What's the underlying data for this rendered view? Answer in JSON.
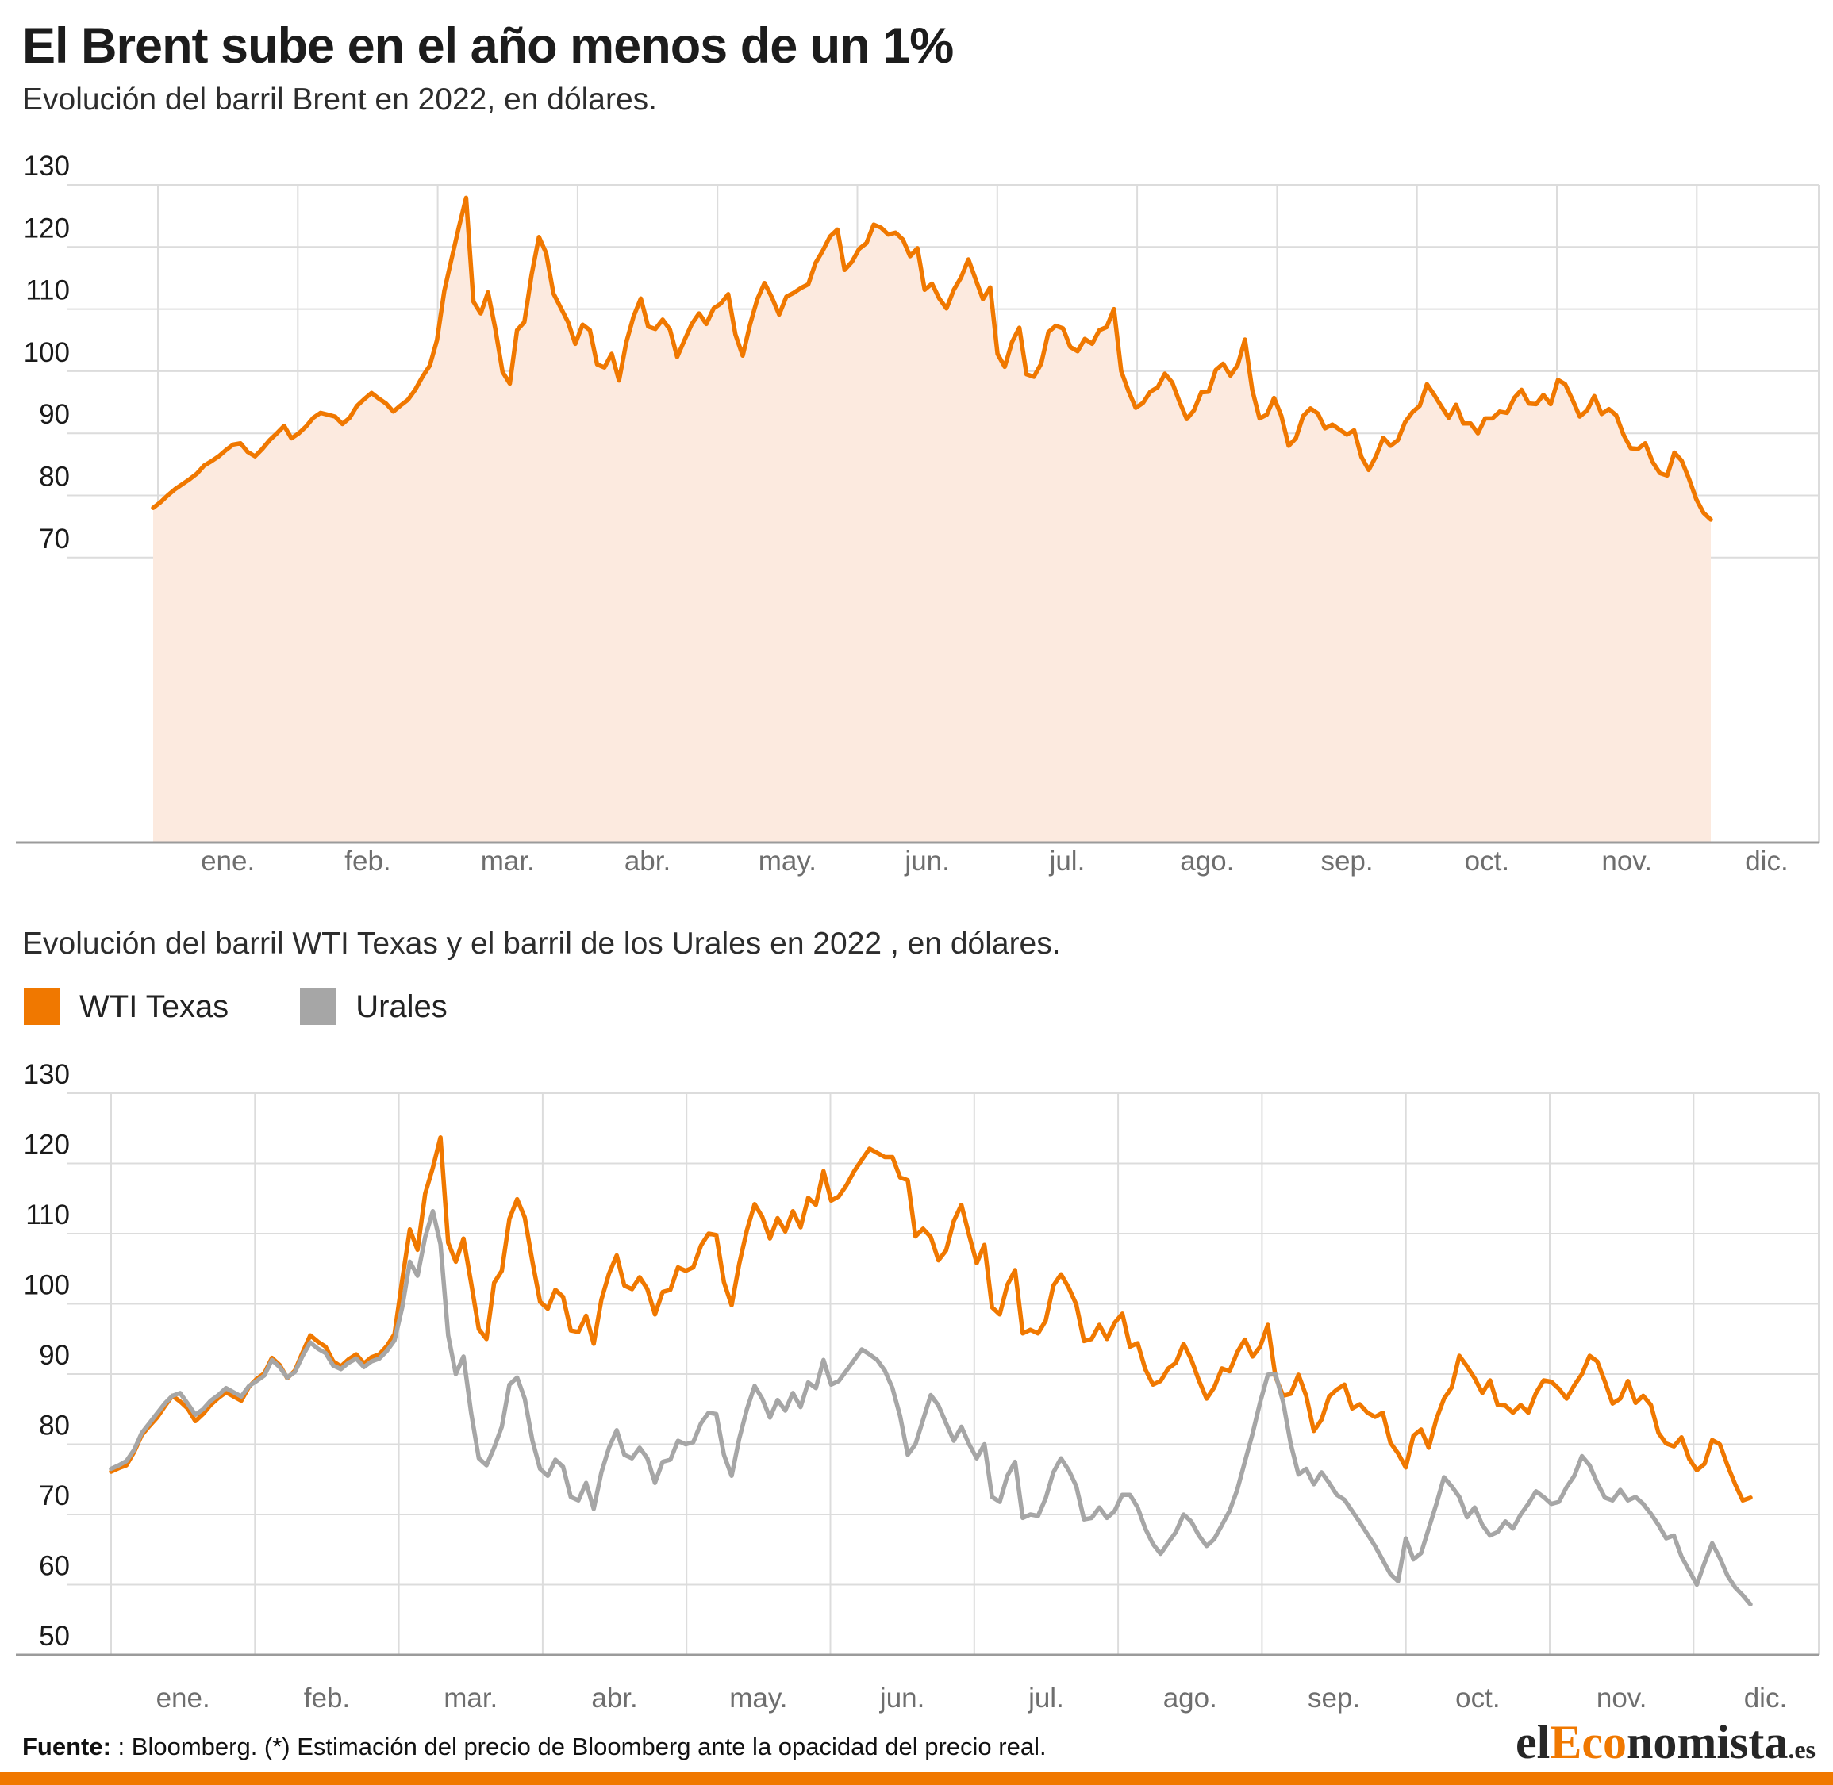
{
  "header": {
    "title": "El Brent sube en el año menos de un 1%",
    "subtitle": "Evolución del barril Brent en 2022, en dólares."
  },
  "section2": {
    "subtitle": "Evolución del barril WTI Texas y el barril de los Urales en 2022 , en dólares.",
    "legend": [
      {
        "label": "WTI Texas",
        "color": "#F07800"
      },
      {
        "label": "Urales",
        "color": "#A6A6A6"
      }
    ]
  },
  "footer": {
    "source_label": "Fuente:",
    "source_text": " : Bloomberg. (*) Estimación del precio de Bloomberg ante la opacidad del precio real.",
    "logo": {
      "part1": "el",
      "part2": "Eco",
      "part3": "nomista",
      "part4": ".es"
    }
  },
  "colors": {
    "accent": "#F07800",
    "area_fill": "#FCEADF",
    "gray_line": "#A6A6A6",
    "grid": "#DCDCDC",
    "axis": "#9B9B9B",
    "tick_text": "#1A1A1A",
    "month_text": "#6E6E6E"
  },
  "chart_data": [
    {
      "type": "area",
      "title": "Evolución del barril Brent en 2022, en dólares.",
      "ylabel": "",
      "xlabel": "",
      "ylim": [
        66,
        130
      ],
      "y_ticks": [
        130,
        120,
        110,
        100,
        90,
        80,
        70
      ],
      "grid": true,
      "x_labels": [
        "ene.",
        "feb.",
        "mar.",
        "abr.",
        "may.",
        "jun.",
        "jul.",
        "ago.",
        "sep.",
        "oct.",
        "nov.",
        "dic."
      ],
      "series": [
        {
          "name": "Brent",
          "color": "#F07800",
          "fill": "#FCEADF",
          "values": [
            78.0,
            78.9,
            80.0,
            81.0,
            81.8,
            82.6,
            83.5,
            84.8,
            85.5,
            86.3,
            87.3,
            88.2,
            88.4,
            87.0,
            86.3,
            87.5,
            88.9,
            90.0,
            91.2,
            89.2,
            90.0,
            91.1,
            92.5,
            93.3,
            93.0,
            92.7,
            91.5,
            92.5,
            94.4,
            95.5,
            96.5,
            95.6,
            94.8,
            93.5,
            94.5,
            95.4,
            97.0,
            99.1,
            100.9,
            105.0,
            112.9,
            118.1,
            123.2,
            127.9,
            111.2,
            109.3,
            112.7,
            106.9,
            99.9,
            98.0,
            106.6,
            107.9,
            115.6,
            121.6,
            119.0,
            112.5,
            110.2,
            107.9,
            104.4,
            107.5,
            106.6,
            101.1,
            100.6,
            102.8,
            98.5,
            104.6,
            108.8,
            111.7,
            107.2,
            106.8,
            108.3,
            106.7,
            102.3,
            105.0,
            107.6,
            109.3,
            107.6,
            110.1,
            110.9,
            112.4,
            105.9,
            102.5,
            107.5,
            111.6,
            114.2,
            111.9,
            109.1,
            112.0,
            112.6,
            113.4,
            114.0,
            117.4,
            119.4,
            121.7,
            122.8,
            116.3,
            117.6,
            119.7,
            120.6,
            123.6,
            123.1,
            122.0,
            122.3,
            121.2,
            118.5,
            119.8,
            113.1,
            114.1,
            111.7,
            110.1,
            113.1,
            115.1,
            118.0,
            114.8,
            111.6,
            113.5,
            102.8,
            100.7,
            104.7,
            107.0,
            99.5,
            99.1,
            101.2,
            106.3,
            107.3,
            106.9,
            103.9,
            103.2,
            105.2,
            104.4,
            106.6,
            107.1,
            110.0,
            100.0,
            96.8,
            94.1,
            94.9,
            96.7,
            97.4,
            99.6,
            98.2,
            95.1,
            92.3,
            93.7,
            96.6,
            96.7,
            100.2,
            101.2,
            99.3,
            101.0,
            105.1,
            97.0,
            92.4,
            93.0,
            95.7,
            92.8,
            88.0,
            89.2,
            92.8,
            94.0,
            93.2,
            90.8,
            91.4,
            90.6,
            89.8,
            90.5,
            86.2,
            84.1,
            86.3,
            89.3,
            88.0,
            88.9,
            91.8,
            93.4,
            94.4,
            97.9,
            96.2,
            94.3,
            92.5,
            94.6,
            91.6,
            91.6,
            90.0,
            92.4,
            92.4,
            93.5,
            93.3,
            95.7,
            97.0,
            94.8,
            94.7,
            96.2,
            94.7,
            98.6,
            97.9,
            95.4,
            92.7,
            93.7,
            96.0,
            93.1,
            93.9,
            92.9,
            89.8,
            87.6,
            87.5,
            88.4,
            85.4,
            83.6,
            83.2,
            86.9,
            85.6,
            82.7,
            79.4,
            77.2,
            76.1
          ]
        }
      ]
    },
    {
      "type": "line",
      "title": "Evolución del barril WTI Texas y el barril de los Urales en 2022 , en dólares.",
      "ylabel": "",
      "xlabel": "",
      "ylim": [
        50,
        130
      ],
      "y_ticks": [
        130,
        120,
        110,
        100,
        90,
        80,
        70,
        60,
        50
      ],
      "grid": true,
      "legend_position": "top-left",
      "x_labels": [
        "ene.",
        "feb.",
        "mar.",
        "abr.",
        "may.",
        "jun.",
        "jul.",
        "ago.",
        "sep.",
        "oct.",
        "nov.",
        "dic."
      ],
      "series": [
        {
          "name": "WTI Texas",
          "color": "#F07800",
          "values": [
            76.1,
            76.6,
            77.0,
            78.9,
            81.3,
            82.6,
            83.8,
            85.4,
            86.9,
            86.1,
            85.1,
            83.3,
            84.3,
            85.6,
            86.6,
            87.4,
            86.8,
            86.2,
            88.2,
            89.3,
            90.1,
            92.3,
            91.3,
            89.4,
            90.5,
            93.1,
            95.5,
            94.6,
            93.9,
            91.8,
            91.1,
            92.1,
            92.8,
            91.5,
            92.4,
            92.8,
            94.0,
            95.7,
            103.4,
            110.6,
            107.7,
            115.7,
            119.4,
            123.7,
            108.7,
            106.0,
            109.3,
            103.0,
            96.4,
            95.0,
            103.0,
            104.7,
            112.1,
            114.9,
            112.3,
            106.0,
            100.3,
            99.3,
            102.0,
            101.0,
            96.2,
            96.0,
            98.3,
            94.3,
            100.6,
            104.3,
            106.9,
            102.6,
            102.1,
            103.8,
            102.1,
            98.5,
            101.7,
            102.0,
            105.2,
            104.7,
            105.2,
            108.3,
            110.0,
            109.8,
            103.1,
            99.8,
            105.7,
            110.5,
            114.2,
            112.4,
            109.3,
            112.2,
            110.3,
            113.2,
            110.9,
            115.1,
            114.1,
            118.9,
            114.7,
            115.3,
            116.9,
            118.9,
            120.5,
            122.1,
            121.5,
            120.9,
            120.9,
            118.0,
            117.6,
            109.6,
            110.7,
            109.5,
            106.2,
            107.6,
            111.8,
            114.1,
            109.8,
            105.8,
            108.4,
            99.5,
            98.5,
            102.7,
            104.8,
            95.8,
            96.3,
            95.8,
            97.6,
            102.6,
            104.2,
            102.3,
            99.9,
            94.7,
            95.0,
            97.0,
            95.0,
            97.3,
            98.6,
            93.9,
            94.4,
            90.7,
            88.5,
            89.0,
            90.8,
            91.6,
            94.3,
            92.1,
            89.1,
            86.5,
            88.1,
            90.8,
            90.4,
            93.1,
            94.9,
            92.5,
            93.9,
            97.0,
            89.6,
            86.9,
            87.2,
            89.9,
            86.9,
            81.9,
            83.5,
            86.8,
            87.8,
            88.5,
            85.1,
            85.7,
            84.5,
            83.9,
            84.5,
            80.2,
            78.7,
            76.7,
            81.2,
            82.1,
            79.5,
            83.6,
            86.5,
            88.1,
            92.6,
            91.1,
            89.4,
            87.3,
            89.1,
            85.6,
            85.5,
            84.5,
            85.6,
            84.5,
            87.3,
            89.1,
            88.9,
            87.9,
            86.5,
            88.4,
            90.0,
            92.6,
            91.8,
            88.9,
            85.8,
            86.5,
            89.0,
            85.9,
            86.9,
            85.6,
            81.6,
            80.1,
            79.7,
            81.0,
            77.9,
            76.3,
            77.2,
            80.6,
            80.0,
            77.0,
            74.3,
            72.0,
            72.4
          ]
        },
        {
          "name": "Urales",
          "color": "#A6A6A6",
          "values": [
            76.5,
            77.0,
            77.6,
            79.2,
            81.6,
            83.0,
            84.4,
            85.8,
            86.9,
            87.3,
            85.8,
            84.2,
            85.0,
            86.2,
            87.0,
            88.0,
            87.4,
            86.8,
            88.3,
            89.0,
            89.8,
            92.0,
            91.0,
            89.5,
            90.3,
            92.6,
            94.5,
            93.6,
            93.0,
            91.2,
            90.7,
            91.6,
            92.2,
            91.0,
            91.8,
            92.2,
            93.3,
            94.8,
            99.5,
            106.0,
            104.0,
            109.5,
            113.2,
            108.5,
            95.5,
            90.0,
            92.5,
            84.5,
            78.0,
            77.0,
            79.5,
            82.5,
            88.5,
            89.5,
            86.5,
            80.5,
            76.5,
            75.5,
            77.8,
            76.8,
            72.5,
            72.0,
            74.5,
            70.8,
            76.0,
            79.5,
            82.0,
            78.5,
            78.0,
            79.5,
            78.0,
            74.5,
            77.5,
            77.8,
            80.5,
            80.0,
            80.3,
            83.0,
            84.5,
            84.3,
            78.5,
            75.5,
            80.8,
            85.0,
            88.3,
            86.5,
            83.8,
            86.3,
            84.8,
            87.3,
            85.3,
            88.8,
            88.0,
            92.0,
            88.5,
            89.0,
            90.5,
            92.0,
            93.5,
            92.8,
            92.0,
            90.5,
            88.0,
            84.0,
            78.5,
            80.0,
            83.5,
            87.0,
            85.5,
            83.0,
            80.5,
            82.5,
            80.0,
            78.0,
            80.0,
            72.5,
            71.8,
            75.5,
            77.5,
            69.5,
            70.0,
            69.8,
            72.3,
            76.0,
            78.0,
            76.3,
            74.0,
            69.3,
            69.5,
            71.0,
            69.5,
            70.5,
            72.8,
            72.8,
            71.0,
            68.0,
            65.8,
            64.4,
            66.0,
            67.5,
            70.0,
            69.0,
            67.0,
            65.5,
            66.5,
            68.5,
            70.5,
            73.5,
            77.5,
            81.5,
            86.0,
            89.9,
            90.0,
            86.0,
            80.0,
            75.7,
            76.5,
            74.3,
            76.0,
            74.5,
            72.8,
            72.1,
            70.5,
            68.9,
            67.2,
            65.5,
            63.5,
            61.5,
            60.5,
            66.6,
            63.6,
            64.5,
            68.0,
            71.5,
            75.3,
            74.0,
            72.5,
            69.6,
            71.0,
            68.5,
            67.0,
            67.5,
            69.0,
            68.0,
            70.0,
            71.5,
            73.3,
            72.5,
            71.5,
            71.8,
            73.9,
            75.5,
            78.3,
            77.0,
            74.5,
            72.4,
            72.0,
            73.5,
            72.0,
            72.5,
            71.5,
            70.1,
            68.5,
            66.6,
            67.0,
            64.0,
            62.0,
            60.0,
            63.1,
            65.9,
            63.8,
            61.3,
            59.6,
            58.5,
            57.2
          ]
        }
      ]
    }
  ]
}
